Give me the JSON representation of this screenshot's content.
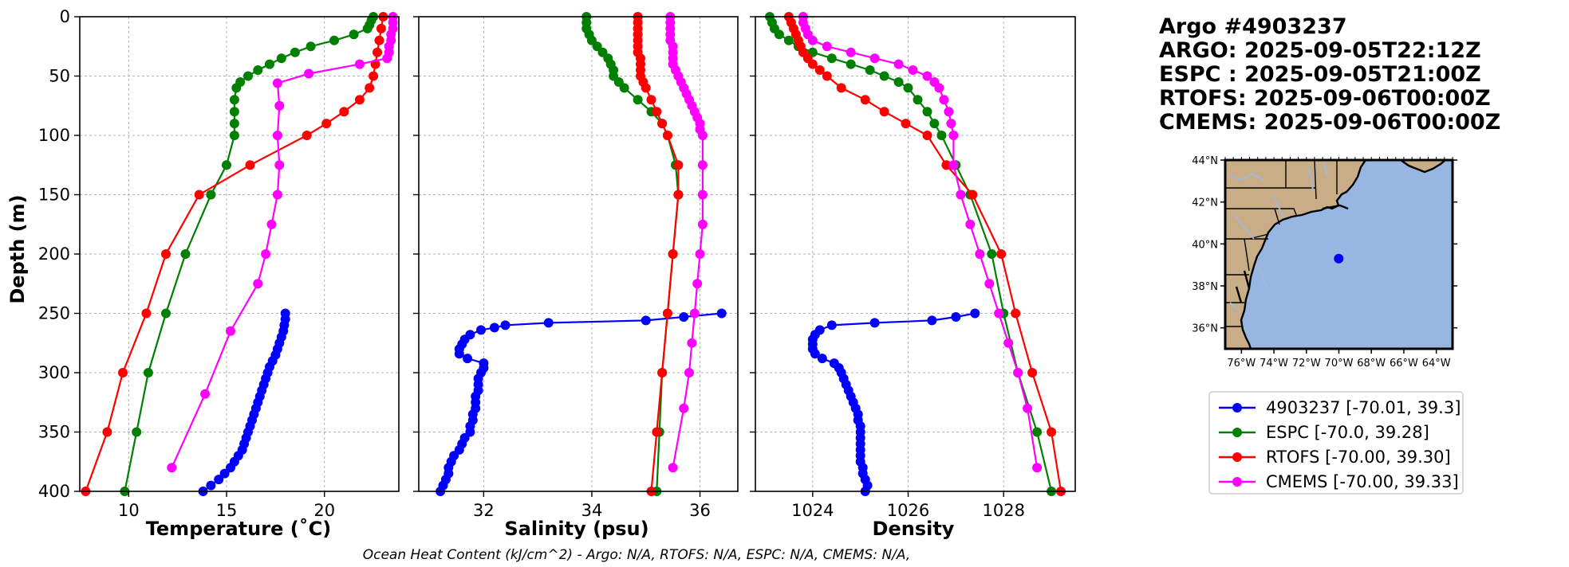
{
  "chart_data": [
    {
      "type": "line",
      "name": "temperature",
      "xlabel": "Temperature (˚C)",
      "ylabel": "Depth (m)",
      "xlim": [
        7.5,
        23.8
      ],
      "ylim": [
        400,
        0
      ],
      "xticks": [
        10,
        15,
        20
      ],
      "yticks": [
        0,
        50,
        100,
        150,
        200,
        250,
        300,
        350,
        400
      ],
      "grid": true,
      "series": [
        {
          "name": "4903237",
          "color": "#0000ff",
          "depth": [
            250,
            255,
            260,
            265,
            270,
            275,
            280,
            285,
            290,
            295,
            300,
            305,
            310,
            315,
            320,
            325,
            330,
            335,
            340,
            345,
            350,
            355,
            360,
            365,
            370,
            375,
            380,
            385,
            390,
            395,
            400
          ],
          "values": [
            18.0,
            18.0,
            17.95,
            17.9,
            17.8,
            17.7,
            17.6,
            17.5,
            17.35,
            17.2,
            17.1,
            17.0,
            16.9,
            16.8,
            16.7,
            16.6,
            16.5,
            16.4,
            16.3,
            16.2,
            16.1,
            16.0,
            15.9,
            15.8,
            15.6,
            15.4,
            15.2,
            14.9,
            14.6,
            14.2,
            13.8
          ]
        },
        {
          "name": "ESPC",
          "color": "#008000",
          "depth": [
            0,
            3,
            7,
            10,
            15,
            20,
            25,
            30,
            35,
            40,
            45,
            50,
            55,
            60,
            70,
            80,
            90,
            100,
            125,
            150,
            200,
            250,
            300,
            350,
            400
          ],
          "values": [
            22.5,
            22.4,
            22.3,
            22.2,
            21.5,
            20.5,
            19.3,
            18.5,
            17.8,
            17.2,
            16.6,
            16.1,
            15.7,
            15.5,
            15.4,
            15.4,
            15.4,
            15.4,
            15.0,
            14.2,
            12.9,
            11.9,
            11.0,
            10.4,
            9.8
          ]
        },
        {
          "name": "RTOFS",
          "color": "#ff0000",
          "depth": [
            0,
            10,
            20,
            30,
            40,
            50,
            60,
            70,
            80,
            90,
            100,
            125,
            150,
            200,
            250,
            300,
            350,
            400
          ],
          "values": [
            23.0,
            22.9,
            22.8,
            22.7,
            22.6,
            22.5,
            22.3,
            21.8,
            21.0,
            20.1,
            19.1,
            16.2,
            13.6,
            11.9,
            10.9,
            9.7,
            8.9,
            7.8
          ]
        },
        {
          "name": "CMEMS",
          "color": "#ff00ff",
          "depth": [
            0,
            5,
            10,
            15,
            20,
            25,
            30,
            35,
            40,
            48,
            56,
            75,
            100,
            125,
            150,
            175,
            200,
            225,
            265,
            318,
            380
          ],
          "values": [
            23.5,
            23.5,
            23.5,
            23.4,
            23.4,
            23.3,
            23.3,
            23.2,
            21.8,
            19.2,
            17.6,
            17.7,
            17.6,
            17.7,
            17.6,
            17.3,
            17.0,
            16.6,
            15.2,
            13.9,
            12.2
          ]
        }
      ]
    },
    {
      "type": "line",
      "name": "salinity",
      "xlabel": "Salinity (psu)",
      "xlim": [
        30.8,
        36.7
      ],
      "ylim": [
        400,
        0
      ],
      "xticks": [
        32,
        34,
        36
      ],
      "yticks": [
        0,
        50,
        100,
        150,
        200,
        250,
        300,
        350,
        400
      ],
      "grid": true,
      "series": [
        {
          "name": "4903237",
          "color": "#0000ff",
          "depth": [
            250,
            253,
            256,
            258,
            260,
            262,
            264,
            268,
            272,
            276,
            280,
            284,
            288,
            292,
            296,
            300,
            305,
            310,
            315,
            320,
            325,
            330,
            335,
            340,
            345,
            350,
            355,
            360,
            365,
            370,
            375,
            380,
            385,
            390,
            395,
            400
          ],
          "values": [
            36.4,
            35.7,
            35.0,
            33.2,
            32.4,
            32.2,
            31.95,
            31.75,
            31.65,
            31.6,
            31.55,
            31.55,
            31.7,
            32.0,
            32.0,
            31.95,
            31.9,
            31.9,
            31.9,
            31.85,
            31.85,
            31.85,
            31.8,
            31.8,
            31.75,
            31.75,
            31.65,
            31.6,
            31.55,
            31.45,
            31.4,
            31.35,
            31.35,
            31.3,
            31.25,
            31.2
          ]
        },
        {
          "name": "ESPC",
          "color": "#008000",
          "depth": [
            0,
            5,
            10,
            15,
            20,
            25,
            30,
            35,
            40,
            45,
            50,
            55,
            60,
            70,
            80,
            90,
            100,
            125,
            150,
            200,
            250,
            300,
            350,
            400
          ],
          "values": [
            33.9,
            33.9,
            33.9,
            33.95,
            34.0,
            34.1,
            34.2,
            34.3,
            34.35,
            34.4,
            34.4,
            34.5,
            34.6,
            34.85,
            35.1,
            35.3,
            35.4,
            35.55,
            35.6,
            35.5,
            35.4,
            35.3,
            35.25,
            35.2
          ]
        },
        {
          "name": "RTOFS",
          "color": "#ff0000",
          "depth": [
            0,
            5,
            10,
            15,
            20,
            25,
            30,
            35,
            40,
            45,
            50,
            55,
            60,
            70,
            80,
            90,
            100,
            125,
            150,
            200,
            250,
            300,
            350,
            400
          ],
          "values": [
            34.85,
            34.85,
            34.85,
            34.85,
            34.85,
            34.85,
            34.85,
            34.9,
            34.9,
            34.9,
            34.9,
            34.95,
            35.0,
            35.1,
            35.2,
            35.3,
            35.4,
            35.6,
            35.6,
            35.5,
            35.4,
            35.3,
            35.2,
            35.1
          ]
        },
        {
          "name": "CMEMS",
          "color": "#ff00ff",
          "depth": [
            0,
            5,
            10,
            15,
            20,
            25,
            30,
            35,
            40,
            45,
            50,
            55,
            60,
            65,
            70,
            75,
            80,
            85,
            90,
            95,
            100,
            125,
            150,
            175,
            200,
            225,
            250,
            275,
            300,
            330,
            380
          ],
          "values": [
            35.45,
            35.45,
            35.45,
            35.45,
            35.45,
            35.5,
            35.5,
            35.5,
            35.5,
            35.55,
            35.6,
            35.65,
            35.7,
            35.75,
            35.8,
            35.85,
            35.9,
            35.95,
            36.0,
            36.0,
            36.05,
            36.05,
            36.05,
            36.05,
            36.0,
            35.95,
            35.9,
            35.85,
            35.8,
            35.7,
            35.5
          ]
        }
      ]
    },
    {
      "type": "line",
      "name": "density",
      "xlabel": "Density",
      "xlim": [
        1022.8,
        1029.5
      ],
      "ylim": [
        400,
        0
      ],
      "xticks": [
        1024,
        1026,
        1028
      ],
      "yticks": [
        0,
        50,
        100,
        150,
        200,
        250,
        300,
        350,
        400
      ],
      "grid": true,
      "series": [
        {
          "name": "4903237",
          "color": "#0000ff",
          "depth": [
            250,
            253,
            256,
            258,
            260,
            264,
            268,
            272,
            276,
            280,
            284,
            288,
            292,
            296,
            300,
            305,
            310,
            315,
            320,
            325,
            330,
            335,
            340,
            345,
            350,
            355,
            360,
            365,
            370,
            375,
            380,
            385,
            390,
            395,
            400
          ],
          "values": [
            1027.4,
            1027.0,
            1026.5,
            1025.3,
            1024.4,
            1024.15,
            1024.05,
            1024.0,
            1024.0,
            1024.0,
            1024.05,
            1024.2,
            1024.45,
            1024.55,
            1024.6,
            1024.65,
            1024.7,
            1024.75,
            1024.8,
            1024.85,
            1024.9,
            1024.95,
            1024.95,
            1025.0,
            1025.0,
            1025.0,
            1025.0,
            1025.0,
            1025.0,
            1025.0,
            1025.05,
            1025.05,
            1025.1,
            1025.15,
            1025.1
          ]
        },
        {
          "name": "ESPC",
          "color": "#008000",
          "depth": [
            0,
            5,
            10,
            15,
            20,
            25,
            30,
            35,
            40,
            45,
            50,
            55,
            60,
            70,
            80,
            90,
            100,
            125,
            150,
            200,
            250,
            300,
            350,
            400
          ],
          "values": [
            1023.1,
            1023.15,
            1023.2,
            1023.3,
            1023.5,
            1023.7,
            1024.0,
            1024.4,
            1024.8,
            1025.2,
            1025.5,
            1025.8,
            1026.0,
            1026.2,
            1026.4,
            1026.55,
            1026.7,
            1027.0,
            1027.3,
            1027.75,
            1028.0,
            1028.3,
            1028.7,
            1029.0
          ]
        },
        {
          "name": "RTOFS",
          "color": "#ff0000",
          "depth": [
            0,
            5,
            10,
            15,
            20,
            25,
            30,
            35,
            40,
            45,
            50,
            60,
            70,
            80,
            90,
            100,
            125,
            150,
            200,
            250,
            300,
            350,
            400
          ],
          "values": [
            1023.5,
            1023.55,
            1023.6,
            1023.65,
            1023.7,
            1023.75,
            1023.8,
            1023.9,
            1024.0,
            1024.15,
            1024.3,
            1024.6,
            1025.1,
            1025.5,
            1025.95,
            1026.4,
            1026.8,
            1027.35,
            1027.95,
            1028.25,
            1028.6,
            1029.0,
            1029.2
          ]
        },
        {
          "name": "CMEMS",
          "color": "#ff00ff",
          "depth": [
            0,
            5,
            10,
            15,
            20,
            25,
            30,
            35,
            40,
            45,
            50,
            55,
            60,
            70,
            80,
            90,
            100,
            125,
            150,
            175,
            200,
            225,
            250,
            275,
            300,
            330,
            380
          ],
          "values": [
            1023.8,
            1023.8,
            1023.85,
            1023.9,
            1024.0,
            1024.3,
            1024.8,
            1025.3,
            1025.8,
            1026.1,
            1026.4,
            1026.55,
            1026.65,
            1026.75,
            1026.85,
            1026.9,
            1026.95,
            1026.95,
            1027.1,
            1027.3,
            1027.5,
            1027.7,
            1027.9,
            1028.1,
            1028.3,
            1028.5,
            1028.7
          ]
        }
      ]
    }
  ],
  "left_axis": {
    "ylabel": "Depth (m)"
  },
  "caption": "Ocean Heat Content (kJ/cm^2) - Argo: N/A,  RTOFS: N/A,  ESPC: N/A,  CMEMS: N/A,",
  "title_lines": [
    "Argo #4903237",
    "ARGO: 2025-09-05T22:12Z",
    "ESPC : 2025-09-05T21:00Z",
    "RTOFS: 2025-09-06T00:00Z",
    "CMEMS: 2025-09-06T00:00Z"
  ],
  "map": {
    "lon_range": [
      -77,
      -63
    ],
    "lat_range": [
      35,
      44
    ],
    "lon_ticks": [
      "76°W",
      "74°W",
      "72°W",
      "70°W",
      "68°W",
      "66°W",
      "64°W"
    ],
    "lat_ticks": [
      "44°N",
      "42°N",
      "40°N",
      "38°N",
      "36°N"
    ],
    "float_position": {
      "lon": -70.01,
      "lat": 39.3
    },
    "ocean_color": "#97b6e1",
    "land_color": "#c8ad87"
  },
  "legend": [
    {
      "label": "4903237 [-70.01, 39.3]",
      "color": "#0000ff"
    },
    {
      "label": "ESPC [-70.0, 39.28]",
      "color": "#008000"
    },
    {
      "label": "RTOFS [-70.00, 39.30]",
      "color": "#ff0000"
    },
    {
      "label": "CMEMS [-70.00, 39.33]",
      "color": "#ff00ff"
    }
  ]
}
